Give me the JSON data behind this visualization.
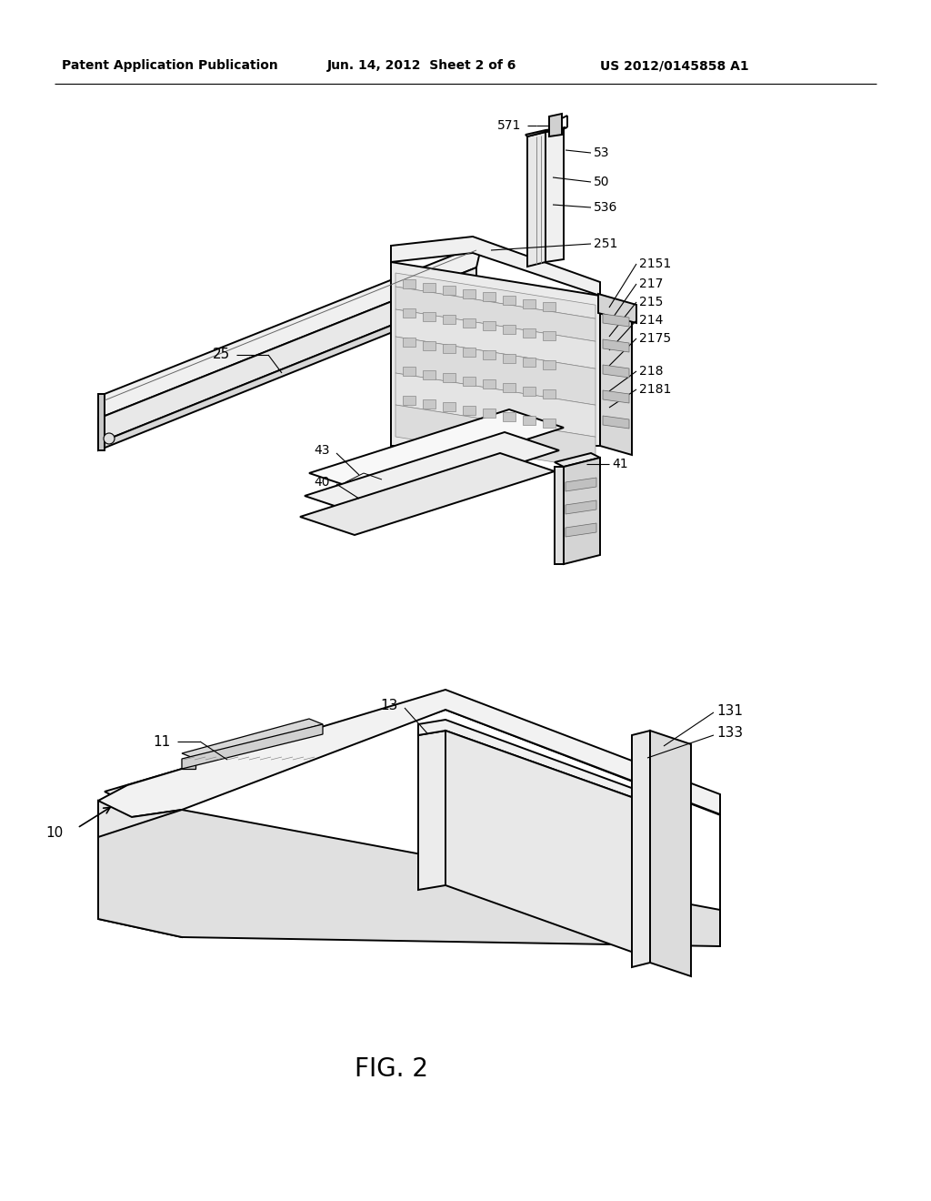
{
  "bg_color": "#ffffff",
  "header_left": "Patent Application Publication",
  "header_mid": "Jun. 14, 2012  Sheet 2 of 6",
  "header_right": "US 2012/0145858 A1",
  "fig_label": "FIG. 2",
  "lw_main": 1.4,
  "lw_detail": 0.9,
  "lw_thin": 0.7
}
